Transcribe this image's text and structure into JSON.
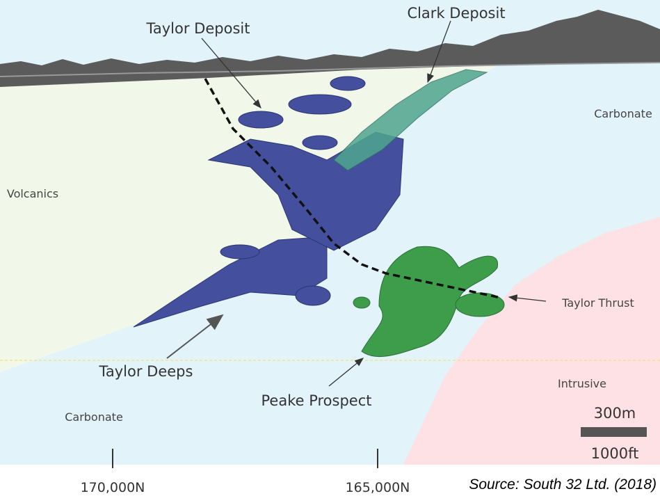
{
  "labels": {
    "taylor_deposit": "Taylor Deposit",
    "clark_deposit": "Clark Deposit",
    "carbonate_upper": "Carbonate",
    "volcanics": "Volcanics",
    "taylor_thrust": "Taylor Thrust",
    "intrusive": "Intrusive",
    "taylor_deeps": "Taylor Deeps",
    "peake_prospect": "Peake Prospect",
    "carbonate_lower": "Carbonate"
  },
  "scale_bar": {
    "metric": "300m",
    "imperial": "1000ft"
  },
  "northings": [
    "170,000N",
    "165,000N"
  ],
  "source": "Source: South 32 Ltd. (2018)"
}
